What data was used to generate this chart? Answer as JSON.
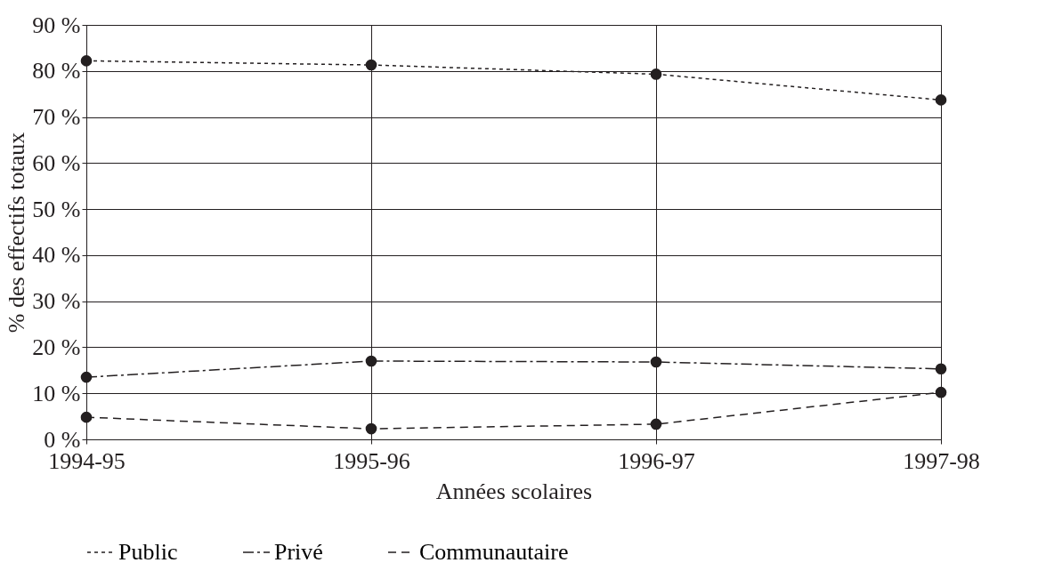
{
  "chart_data": {
    "type": "line",
    "xlabel": "Années scolaires",
    "ylabel": "% des effectifs totaux",
    "categories": [
      "1994-95",
      "1995-96",
      "1996-97",
      "1997-98"
    ],
    "series": [
      {
        "name": "Public",
        "color": "#231f20",
        "line_style": "dotted",
        "values": [
          82.2,
          81.3,
          79.3,
          73.7
        ]
      },
      {
        "name": "Privé",
        "color": "#231f20",
        "line_style": "dashdot",
        "values": [
          13.5,
          17.0,
          16.8,
          15.3
        ]
      },
      {
        "name": "Communautaire",
        "color": "#231f20",
        "line_style": "dashed",
        "values": [
          4.8,
          2.3,
          3.3,
          10.2
        ]
      }
    ],
    "ylim": [
      0,
      90
    ],
    "yticks": [
      {
        "value": 0,
        "label": "0 %"
      },
      {
        "value": 10,
        "label": "10 %"
      },
      {
        "value": 20,
        "label": "20 %"
      },
      {
        "value": 30,
        "label": "30 %"
      },
      {
        "value": 40,
        "label": "40 %"
      },
      {
        "value": 50,
        "label": "50 %"
      },
      {
        "value": 60,
        "label": "60 %"
      },
      {
        "value": 70,
        "label": "70 %"
      },
      {
        "value": 80,
        "label": "80 %"
      },
      {
        "value": 90,
        "label": "90 %"
      }
    ],
    "grid": true,
    "legend": "bottom",
    "marker": "circle"
  }
}
